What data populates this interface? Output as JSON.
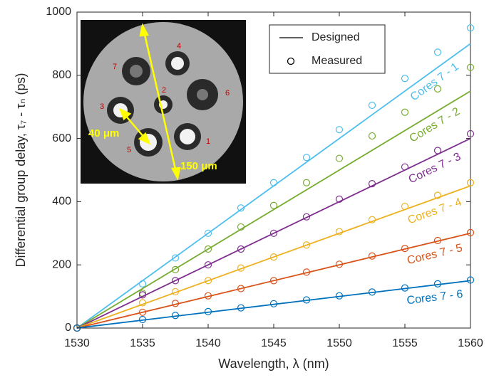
{
  "chart_data": {
    "type": "line",
    "x_label": "Wavelength, λ (nm)",
    "y_label": "Differential group delay, τ₇ - τₙ (ps)",
    "xlim": [
      1530,
      1560
    ],
    "xticks": [
      1530,
      1535,
      1540,
      1545,
      1550,
      1555,
      1560
    ],
    "ylim": [
      0,
      1000
    ],
    "yticks": [
      0,
      200,
      400,
      600,
      800,
      1000
    ],
    "legend": [
      "Designed",
      "Measured"
    ],
    "annotations": [
      "40 μm",
      "150 μm"
    ],
    "core_labels": [
      "1",
      "2",
      "3",
      "4",
      "5",
      "6",
      "7"
    ],
    "designed_x": [
      1530,
      1560
    ],
    "x": [
      1530,
      1535,
      1537.5,
      1540,
      1542.5,
      1545,
      1547.5,
      1550,
      1552.5,
      1555,
      1557.5,
      1560
    ],
    "series": [
      {
        "name": "Cores 7 - 1",
        "color": "#4dbeee",
        "designed": [
          0,
          900
        ],
        "values": [
          0,
          140,
          222,
          300,
          380,
          460,
          540,
          628,
          705,
          790,
          873,
          950
        ]
      },
      {
        "name": "Cores 7 - 2",
        "color": "#77ac30",
        "designed": [
          0,
          750
        ],
        "values": [
          0,
          110,
          185,
          250,
          320,
          388,
          460,
          537,
          608,
          683,
          757,
          825
        ]
      },
      {
        "name": "Cores 7 - 3",
        "color": "#7e2f8e",
        "designed": [
          0,
          600
        ],
        "values": [
          0,
          105,
          150,
          200,
          250,
          300,
          352,
          408,
          457,
          510,
          562,
          615
        ]
      },
      {
        "name": "Cores 7 - 4",
        "color": "#edb120",
        "designed": [
          0,
          450
        ],
        "values": [
          0,
          80,
          115,
          150,
          190,
          225,
          263,
          305,
          343,
          385,
          420,
          460
        ]
      },
      {
        "name": "Cores 7 - 5",
        "color": "#d95319",
        "designed": [
          0,
          300
        ],
        "values": [
          0,
          50,
          78,
          102,
          125,
          150,
          177,
          202,
          228,
          252,
          277,
          302
        ]
      },
      {
        "name": "Cores 7 - 6",
        "color": "#0072bd",
        "designed": [
          0,
          150
        ],
        "values": [
          0,
          27,
          40,
          52,
          64,
          77,
          89,
          102,
          114,
          127,
          140,
          152
        ]
      }
    ]
  }
}
